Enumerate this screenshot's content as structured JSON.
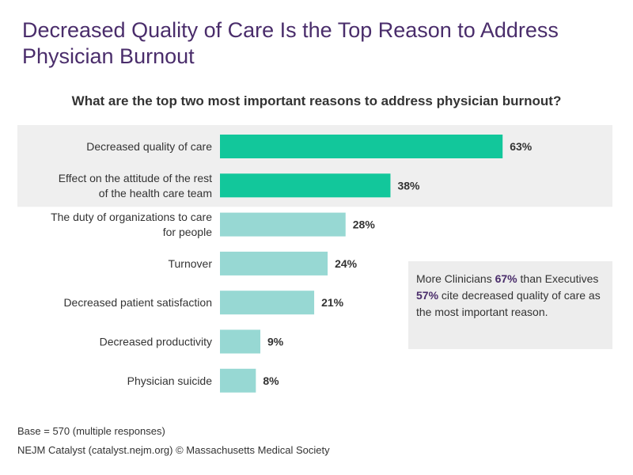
{
  "title": "Decreased Quality of Care Is the Top Reason to Address Physician Burnout",
  "subtitle": "What are the top two most important reasons to address physician burnout?",
  "colors": {
    "highlight_bar": "#12c79b",
    "normal_bar": "#97d8d3",
    "highlight_band": "#efefef",
    "title": "#4a2d6b"
  },
  "chart_data": {
    "type": "bar",
    "orientation": "horizontal",
    "categories": [
      [
        "Decreased quality of care"
      ],
      [
        "Effect on the attitude of the rest",
        "of the health care team"
      ],
      [
        "The duty of organizations to care",
        "for people"
      ],
      [
        "Turnover"
      ],
      [
        "Decreased patient satisfaction"
      ],
      [
        "Decreased productivity"
      ],
      [
        "Physician suicide"
      ]
    ],
    "values": [
      63,
      38,
      28,
      24,
      21,
      9,
      8
    ],
    "value_labels": [
      "63%",
      "38%",
      "28%",
      "24%",
      "21%",
      "9%",
      "8%"
    ],
    "highlighted": [
      true,
      true,
      false,
      false,
      false,
      false,
      false
    ],
    "unit": "%",
    "xlim": [
      0,
      100
    ],
    "title": "What are the top two most important reasons to address physician burnout?"
  },
  "callout": {
    "text1": "More Clinicians ",
    "value1": "67%",
    "text2": " than Executives ",
    "value2": "57%",
    "text3": " cite decreased quality of care as the most important reason."
  },
  "footer": {
    "base": "Base = 570 (multiple responses)",
    "source": "NEJM Catalyst (catalyst.nejm.org) © Massachusetts Medical Society"
  }
}
